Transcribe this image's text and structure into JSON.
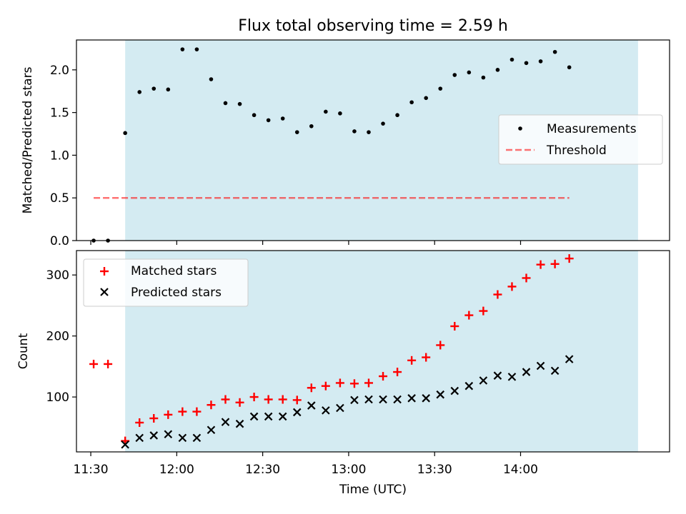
{
  "figure": {
    "title": "Flux total observing time = 2.59 h",
    "xlabel": "Time (UTC)",
    "colors": {
      "shade": "#add8e6",
      "measurement": "#000000",
      "threshold": "#ff0000",
      "matched": "#ff0000",
      "predicted": "#000000"
    }
  },
  "chart_data": [
    {
      "type": "scatter",
      "ylabel": "Matched/Predicted stars",
      "x_domain": [
        "11:25",
        "14:52"
      ],
      "ylim": [
        0,
        2.35
      ],
      "yticks": [
        0.0,
        0.5,
        1.0,
        1.5,
        2.0
      ],
      "ytick_labels": [
        "0.0",
        "0.5",
        "1.0",
        "1.5",
        "2.0"
      ],
      "xticks": [
        "11:30",
        "12:00",
        "12:30",
        "13:00",
        "13:30",
        "14:00"
      ],
      "legend_position": "center-right",
      "shaded_span": [
        "11:42",
        "14:41"
      ],
      "series": [
        {
          "name": "Measurements",
          "marker": "point",
          "x": [
            "11:31",
            "11:36",
            "11:42",
            "11:47",
            "11:52",
            "11:57",
            "12:02",
            "12:07",
            "12:12",
            "12:17",
            "12:22",
            "12:27",
            "12:32",
            "12:37",
            "12:42",
            "12:47",
            "12:52",
            "12:57",
            "13:02",
            "13:07",
            "13:12",
            "13:17",
            "13:22",
            "13:27",
            "13:32",
            "13:37",
            "13:42",
            "13:47",
            "13:52",
            "13:57",
            "14:02",
            "14:07",
            "14:12",
            "14:17"
          ],
          "y": [
            0.0,
            0.0,
            1.26,
            1.74,
            1.78,
            1.77,
            2.24,
            2.24,
            1.89,
            1.61,
            1.6,
            1.47,
            1.41,
            1.43,
            1.27,
            1.34,
            1.51,
            1.49,
            1.28,
            1.27,
            1.37,
            1.47,
            1.62,
            1.67,
            1.78,
            1.94,
            1.97,
            1.91,
            2.0,
            2.12,
            2.08,
            2.1,
            2.21,
            2.03
          ]
        },
        {
          "name": "Threshold",
          "style": "dashed",
          "x": [
            "11:31",
            "14:17"
          ],
          "y": [
            0.5,
            0.5
          ]
        }
      ]
    },
    {
      "type": "scatter",
      "ylabel": "Count",
      "x_domain": [
        "11:25",
        "14:52"
      ],
      "ylim": [
        10,
        340
      ],
      "yticks": [
        100,
        200,
        300
      ],
      "ytick_labels": [
        "100",
        "200",
        "300"
      ],
      "xticks": [
        "11:30",
        "12:00",
        "12:30",
        "13:00",
        "13:30",
        "14:00"
      ],
      "xtick_labels": [
        "11:30",
        "12:00",
        "12:30",
        "13:00",
        "13:30",
        "14:00"
      ],
      "legend_position": "top-left",
      "shaded_span": [
        "11:42",
        "14:41"
      ],
      "series": [
        {
          "name": "Matched stars",
          "marker": "plus",
          "x": [
            "11:31",
            "11:36",
            "11:42",
            "11:47",
            "11:52",
            "11:57",
            "12:02",
            "12:07",
            "12:12",
            "12:17",
            "12:22",
            "12:27",
            "12:32",
            "12:37",
            "12:42",
            "12:47",
            "12:52",
            "12:57",
            "13:02",
            "13:07",
            "13:12",
            "13:17",
            "13:22",
            "13:27",
            "13:32",
            "13:37",
            "13:42",
            "13:47",
            "13:52",
            "13:57",
            "14:02",
            "14:07",
            "14:12",
            "14:17"
          ],
          "y": [
            154,
            154,
            28,
            58,
            65,
            71,
            76,
            76,
            87,
            96,
            91,
            100,
            96,
            96,
            95,
            115,
            118,
            123,
            122,
            123,
            134,
            141,
            160,
            165,
            185,
            216,
            234,
            241,
            268,
            281,
            295,
            317,
            318,
            327
          ]
        },
        {
          "name": "Predicted stars",
          "x": [
            "11:42",
            "11:47",
            "11:52",
            "11:57",
            "12:02",
            "12:07",
            "12:12",
            "12:17",
            "12:22",
            "12:27",
            "12:32",
            "12:37",
            "12:42",
            "12:47",
            "12:52",
            "12:57",
            "13:02",
            "13:07",
            "13:12",
            "13:17",
            "13:22",
            "13:27",
            "13:32",
            "13:37",
            "13:42",
            "13:47",
            "13:52",
            "13:57",
            "14:02",
            "14:07",
            "14:12",
            "14:17"
          ],
          "y": [
            22,
            33,
            37,
            39,
            33,
            33,
            46,
            59,
            56,
            68,
            68,
            68,
            75,
            86,
            78,
            82,
            95,
            96,
            96,
            96,
            98,
            98,
            104,
            110,
            118,
            127,
            135,
            133,
            141,
            151,
            143,
            162
          ],
          "marker": "x"
        }
      ]
    }
  ]
}
